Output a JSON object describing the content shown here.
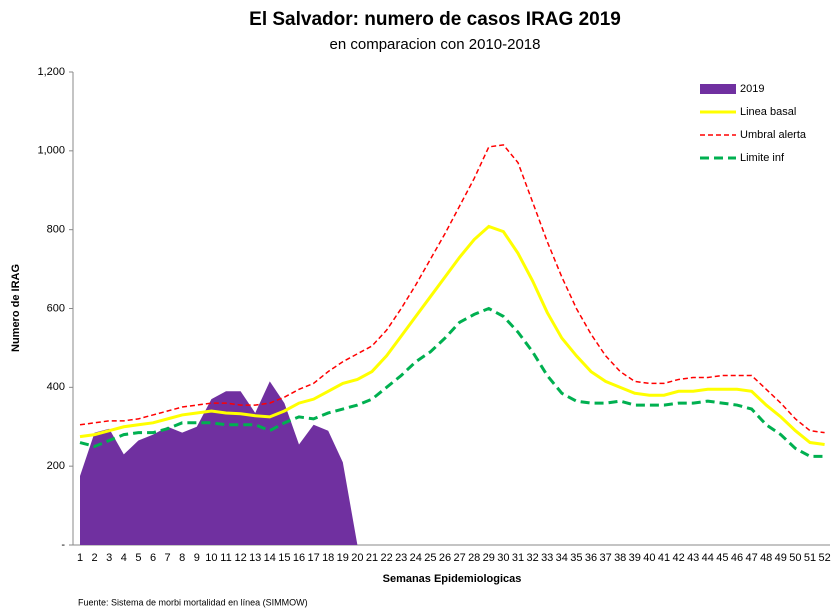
{
  "chart_data": {
    "type": "line",
    "title": "El Salvador: numero de casos IRAG 2019",
    "subtitle": "en comparacion con 2010-2018",
    "y_label": "Numero de IRAG",
    "x_label": "Semanas Epidemiologicas",
    "source": "Fuente: Sistema de morbi mortalidad en línea (SIMMOW)",
    "categories": [
      "1",
      "2",
      "3",
      "4",
      "5",
      "6",
      "7",
      "8",
      "9",
      "10",
      "11",
      "12",
      "13",
      "14",
      "15",
      "16",
      "17",
      "18",
      "19",
      "20",
      "21",
      "22",
      "23",
      "24",
      "25",
      "26",
      "27",
      "28",
      "29",
      "30",
      "31",
      "32",
      "33",
      "34",
      "35",
      "36",
      "37",
      "38",
      "39",
      "40",
      "41",
      "42",
      "43",
      "44",
      "45",
      "46",
      "47",
      "48",
      "49",
      "50",
      "51",
      "52"
    ],
    "ylim": [
      0,
      1200
    ],
    "yticks": [
      {
        "value": 0,
        "label": "-"
      },
      200,
      400,
      600,
      {
        "value": 800,
        "label": "800"
      },
      {
        "value": 1000,
        "label": "1,000"
      },
      {
        "value": 1200,
        "label": "1,200"
      }
    ],
    "grid": false,
    "legend": "top-right",
    "series": [
      {
        "name": "2019",
        "color": "#7030a0",
        "mark": "area",
        "values": [
          175,
          285,
          295,
          230,
          265,
          280,
          300,
          285,
          300,
          370,
          390,
          390,
          335,
          415,
          360,
          255,
          305,
          290,
          210,
          0,
          null,
          null,
          null,
          null,
          null,
          null,
          null,
          null,
          null,
          null,
          null,
          null,
          null,
          null,
          null,
          null,
          null,
          null,
          null,
          null,
          null,
          null,
          null,
          null,
          null,
          null,
          null,
          null,
          null,
          null,
          null,
          null
        ]
      },
      {
        "name": "Linea basal",
        "color": "#ffff00",
        "mark": "line",
        "dash": "solid",
        "values": [
          275,
          280,
          290,
          300,
          305,
          310,
          320,
          330,
          335,
          340,
          335,
          333,
          328,
          325,
          340,
          360,
          370,
          390,
          410,
          420,
          440,
          480,
          530,
          580,
          630,
          680,
          730,
          775,
          808,
          795,
          740,
          670,
          590,
          525,
          480,
          440,
          415,
          400,
          385,
          380,
          380,
          390,
          390,
          395,
          395,
          395,
          390,
          355,
          325,
          290,
          260,
          255
        ]
      },
      {
        "name": "Umbral alerta",
        "color": "#ff0000",
        "mark": "line",
        "dash": "dashed-fine",
        "values": [
          305,
          310,
          315,
          315,
          320,
          330,
          340,
          350,
          355,
          360,
          360,
          355,
          355,
          360,
          375,
          395,
          410,
          440,
          465,
          485,
          505,
          545,
          600,
          660,
          725,
          790,
          860,
          930,
          1010,
          1015,
          970,
          870,
          770,
          680,
          600,
          535,
          480,
          440,
          415,
          410,
          410,
          420,
          425,
          425,
          430,
          430,
          430,
          395,
          360,
          320,
          290,
          285
        ]
      },
      {
        "name": "Limite inf",
        "color": "#00b050",
        "mark": "line",
        "dash": "dashed-bold",
        "values": [
          260,
          250,
          265,
          280,
          285,
          285,
          295,
          310,
          310,
          310,
          305,
          305,
          305,
          290,
          310,
          325,
          320,
          335,
          345,
          355,
          370,
          400,
          430,
          465,
          490,
          525,
          565,
          585,
          600,
          580,
          540,
          490,
          430,
          385,
          365,
          360,
          360,
          365,
          355,
          355,
          355,
          360,
          360,
          365,
          360,
          355,
          345,
          305,
          280,
          245,
          225,
          225
        ]
      }
    ]
  }
}
